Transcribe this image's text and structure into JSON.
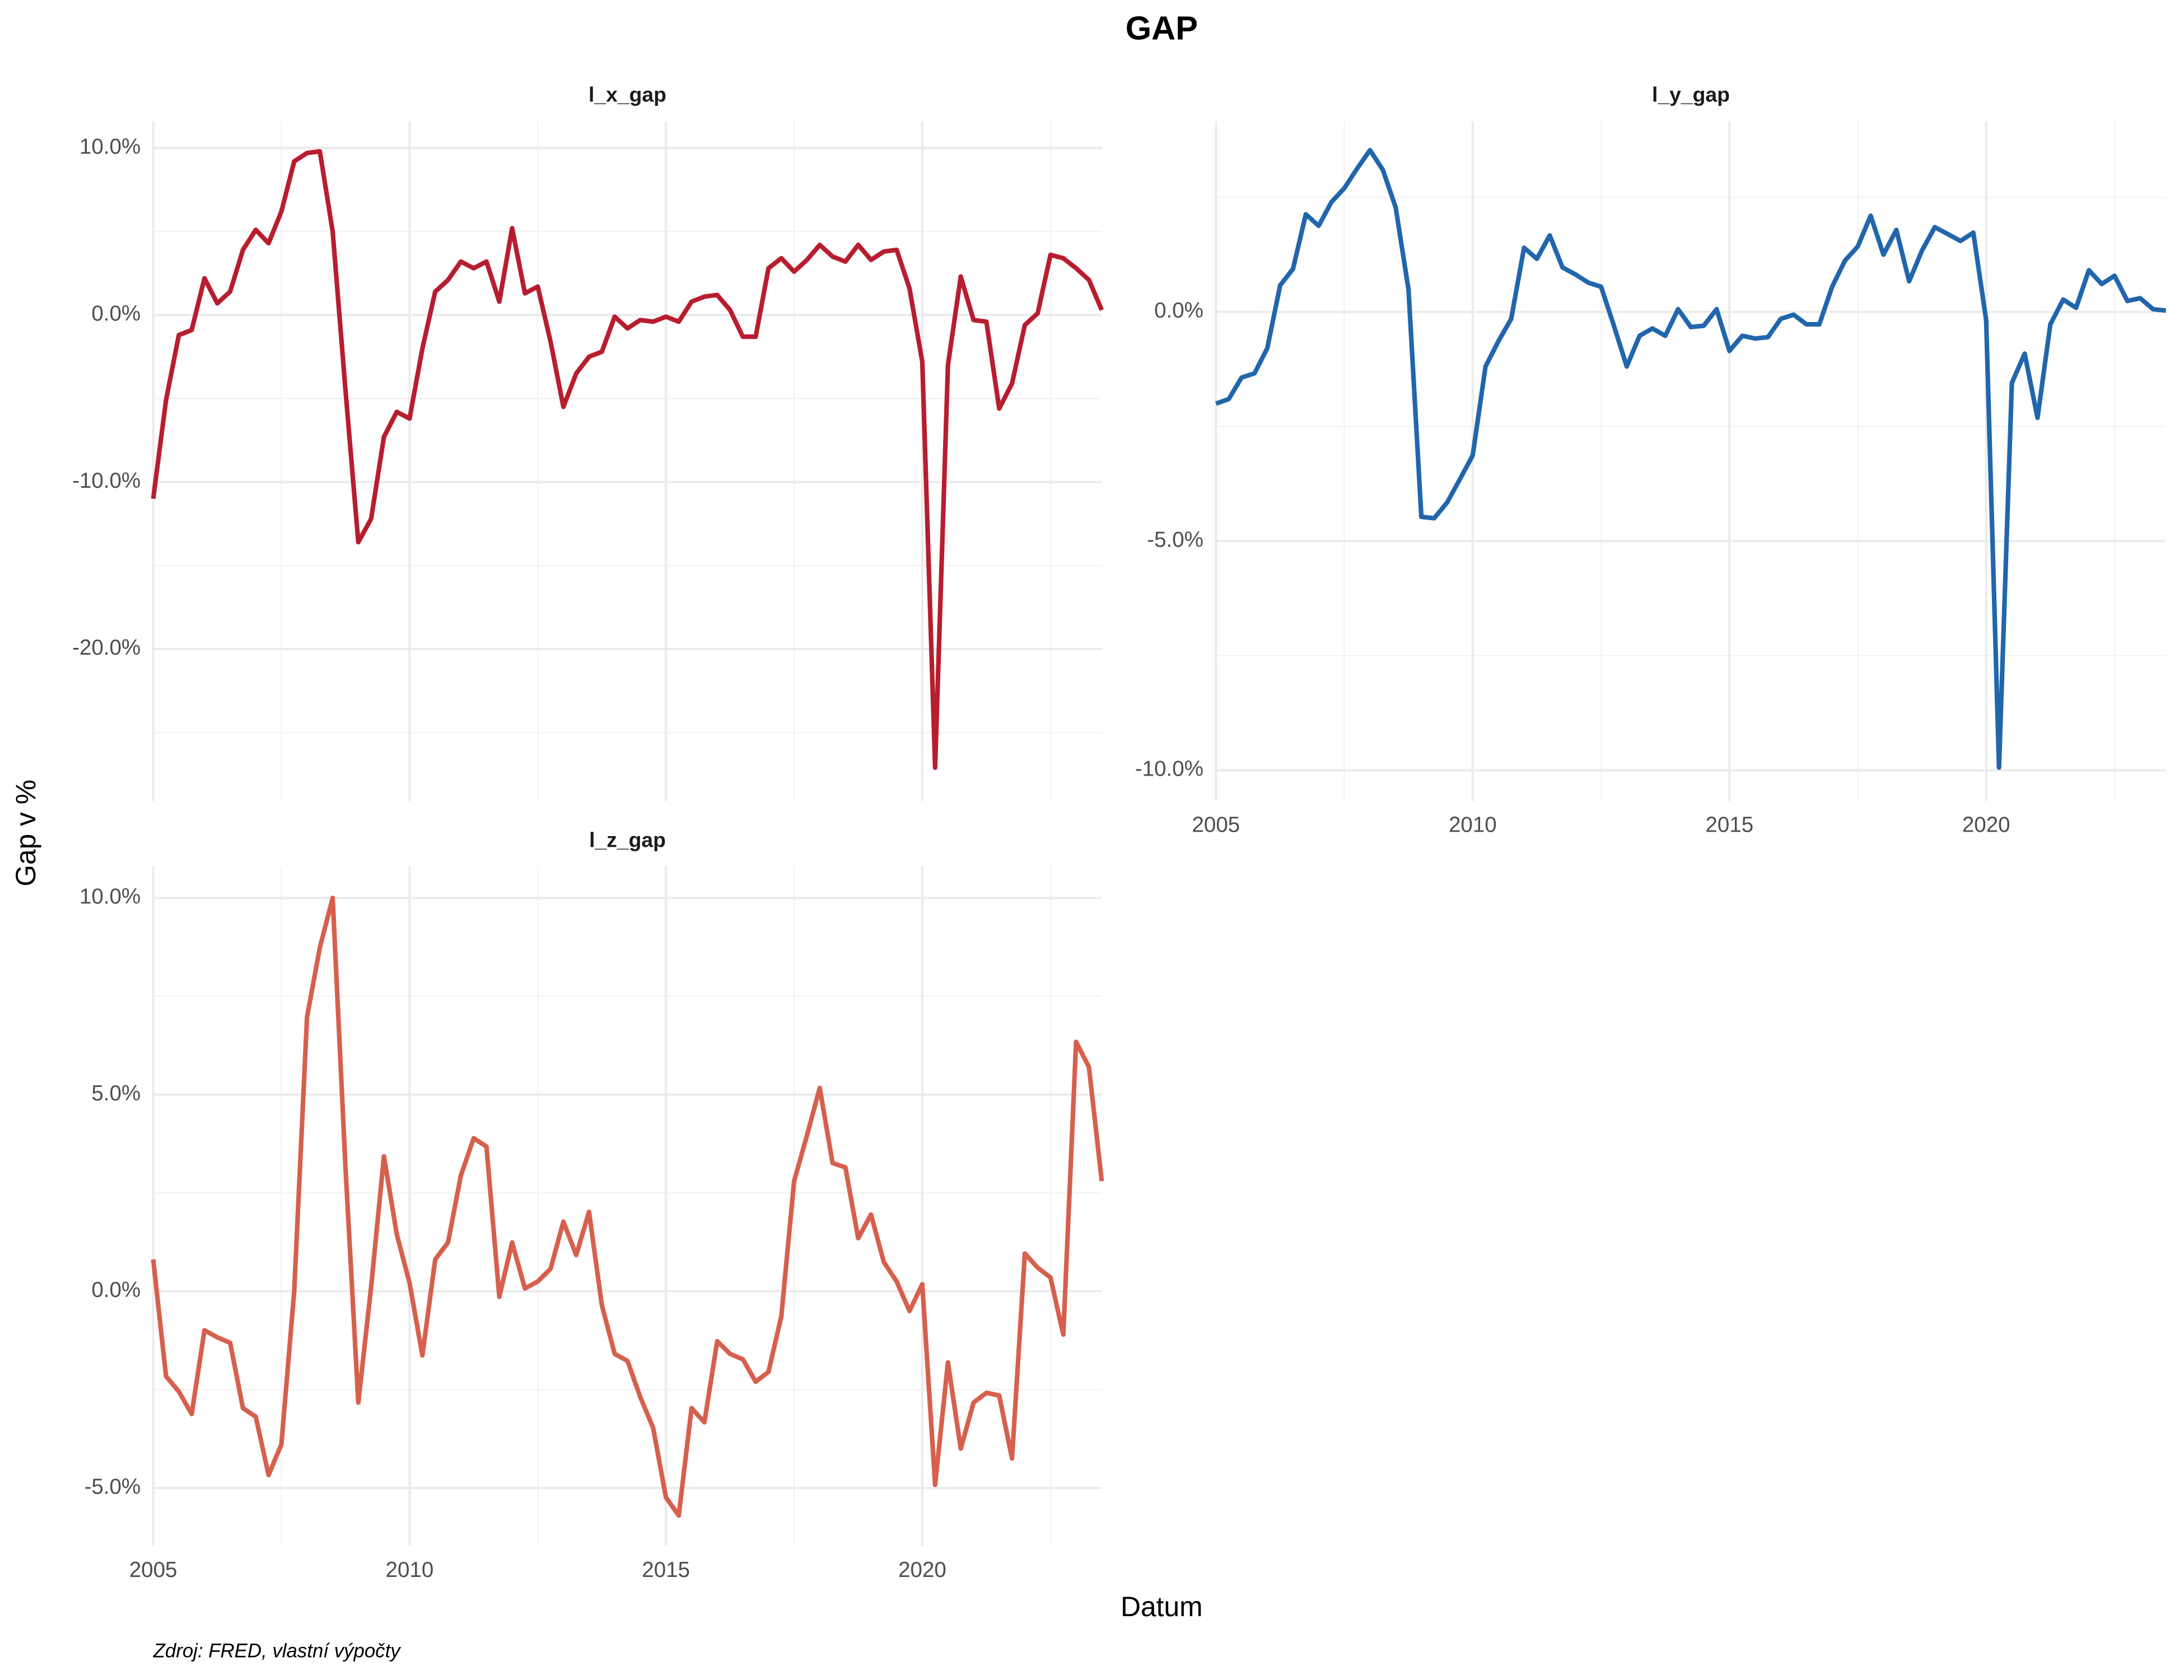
{
  "figure": {
    "title": "GAP",
    "x_label": "Datum",
    "y_label": "Gap v %",
    "caption": "Zdroj: FRED, vlastní výpočty"
  },
  "chart_data": [
    {
      "type": "line",
      "title": "l_x_gap",
      "grid": true,
      "x_tick_labels": false,
      "x": [
        2005,
        2005.25,
        2005.5,
        2005.75,
        2006,
        2006.25,
        2006.5,
        2006.75,
        2007,
        2007.25,
        2007.5,
        2007.75,
        2008,
        2008.25,
        2008.5,
        2008.75,
        2009,
        2009.25,
        2009.5,
        2009.75,
        2010,
        2010.25,
        2010.5,
        2010.75,
        2011,
        2011.25,
        2011.5,
        2011.75,
        2012,
        2012.25,
        2012.5,
        2012.75,
        2013,
        2013.25,
        2013.5,
        2013.75,
        2014,
        2014.25,
        2014.5,
        2014.75,
        2015,
        2015.25,
        2015.5,
        2015.75,
        2016,
        2016.25,
        2016.5,
        2016.75,
        2017,
        2017.25,
        2017.5,
        2017.75,
        2018,
        2018.25,
        2018.5,
        2018.75,
        2019,
        2019.25,
        2019.5,
        2019.75,
        2020,
        2020.25,
        2020.5,
        2020.75,
        2021,
        2021.25,
        2021.5,
        2021.75,
        2022,
        2022.25,
        2022.5,
        2022.75,
        2023,
        2023.25,
        2023.5
      ],
      "series": [
        {
          "color": "#b81d2e",
          "values": [
            -11,
            -5.1,
            -1.2,
            -0.9,
            2.2,
            0.7,
            1.4,
            3.9,
            5.1,
            4.3,
            6.2,
            9.2,
            9.7,
            9.8,
            5,
            -4.5,
            -13.6,
            -12.2,
            -7.3,
            -5.8,
            -6.2,
            -2,
            1.4,
            2.1,
            3.2,
            2.8,
            3.2,
            0.8,
            5.2,
            1.3,
            1.7,
            -1.6,
            -5.5,
            -3.5,
            -2.5,
            -2.2,
            -0.1,
            -0.8,
            -0.3,
            -0.4,
            -0.1,
            -0.4,
            0.8,
            1.1,
            1.2,
            0.3,
            -1.3,
            -1.3,
            2.8,
            3.4,
            2.6,
            3.3,
            4.2,
            3.5,
            3.2,
            4.2,
            3.3,
            3.8,
            3.9,
            1.6,
            -2.8,
            -27.1,
            -3,
            2.3,
            -0.3,
            -0.4,
            -5.6,
            -4.1,
            -0.6,
            0.1,
            3.6,
            3.4,
            2.8,
            2.1,
            0.3
          ]
        }
      ],
      "xlim": [
        2005,
        2023.5
      ],
      "xticks": [
        2005,
        2010,
        2015,
        2020
      ],
      "ylim": [
        -29.1,
        11.6
      ],
      "yticks": [
        {
          "value": -20,
          "label": "-20.0%"
        },
        {
          "value": -10,
          "label": "-10.0%"
        },
        {
          "value": 0,
          "label": "0.0%"
        },
        {
          "value": 10,
          "label": "10.0%"
        }
      ]
    },
    {
      "type": "line",
      "title": "l_y_gap",
      "grid": true,
      "x_tick_labels": true,
      "x": [
        2005,
        2005.25,
        2005.5,
        2005.75,
        2006,
        2006.25,
        2006.5,
        2006.75,
        2007,
        2007.25,
        2007.5,
        2007.75,
        2008,
        2008.25,
        2008.5,
        2008.75,
        2009,
        2009.25,
        2009.5,
        2009.75,
        2010,
        2010.25,
        2010.5,
        2010.75,
        2011,
        2011.25,
        2011.5,
        2011.75,
        2012,
        2012.25,
        2012.5,
        2012.75,
        2013,
        2013.25,
        2013.5,
        2013.75,
        2014,
        2014.25,
        2014.5,
        2014.75,
        2015,
        2015.25,
        2015.5,
        2015.75,
        2016,
        2016.25,
        2016.5,
        2016.75,
        2017,
        2017.25,
        2017.5,
        2017.75,
        2018,
        2018.25,
        2018.5,
        2018.75,
        2019,
        2019.25,
        2019.5,
        2019.75,
        2020,
        2020.25,
        2020.5,
        2020.75,
        2021,
        2021.25,
        2021.5,
        2021.75,
        2022,
        2022.25,
        2022.5,
        2022.75,
        2023,
        2023.25,
        2023.5
      ],
      "series": [
        {
          "color": "#2166ac",
          "values": [
            -2,
            -1.9,
            -1.43,
            -1.34,
            -0.79,
            0.58,
            0.94,
            2.13,
            1.88,
            2.4,
            2.7,
            3.13,
            3.53,
            3.1,
            2.28,
            0.49,
            -4.47,
            -4.5,
            -4.16,
            -3.65,
            -3.13,
            -1.19,
            -0.64,
            -0.15,
            1.4,
            1.16,
            1.67,
            0.97,
            0.82,
            0.64,
            0.55,
            -0.3,
            -1.19,
            -0.52,
            -0.36,
            -0.52,
            0.06,
            -0.33,
            -0.3,
            0.06,
            -0.85,
            -0.52,
            -0.58,
            -0.55,
            -0.15,
            -0.06,
            -0.27,
            -0.27,
            0.55,
            1.12,
            1.43,
            2.1,
            1.25,
            1.79,
            0.67,
            1.34,
            1.85,
            1.7,
            1.55,
            1.73,
            -0.18,
            -9.94,
            -1.55,
            -0.91,
            -2.31,
            -0.27,
            0.27,
            0.09,
            0.91,
            0.61,
            0.79,
            0.24,
            0.3,
            0.06,
            0.03
          ]
        }
      ],
      "xlim": [
        2005,
        2023.5
      ],
      "xticks": [
        2005,
        2010,
        2015,
        2020
      ],
      "ylim": [
        -10.67,
        4.16
      ],
      "yticks": [
        {
          "value": -10,
          "label": "-10.0%"
        },
        {
          "value": -5,
          "label": "-5.0%"
        },
        {
          "value": 0,
          "label": "0.0%"
        }
      ]
    },
    {
      "type": "line",
      "title": "l_z_gap",
      "grid": true,
      "x_tick_labels": true,
      "x": [
        2005,
        2005.25,
        2005.5,
        2005.75,
        2006,
        2006.25,
        2006.5,
        2006.75,
        2007,
        2007.25,
        2007.5,
        2007.75,
        2008,
        2008.25,
        2008.5,
        2008.75,
        2009,
        2009.25,
        2009.5,
        2009.75,
        2010,
        2010.25,
        2010.5,
        2010.75,
        2011,
        2011.25,
        2011.5,
        2011.75,
        2012,
        2012.25,
        2012.5,
        2012.75,
        2013,
        2013.25,
        2013.5,
        2013.75,
        2014,
        2014.25,
        2014.5,
        2014.75,
        2015,
        2015.25,
        2015.5,
        2015.75,
        2016,
        2016.25,
        2016.5,
        2016.75,
        2017,
        2017.25,
        2017.5,
        2017.75,
        2018,
        2018.25,
        2018.5,
        2018.75,
        2019,
        2019.25,
        2019.5,
        2019.75,
        2020,
        2020.25,
        2020.5,
        2020.75,
        2021,
        2021.25,
        2021.5,
        2021.75,
        2022,
        2022.25,
        2022.5,
        2022.75,
        2023,
        2023.25,
        2023.5
      ],
      "series": [
        {
          "color": "#d6604d",
          "values": [
            0.81,
            -2.16,
            -2.55,
            -3.12,
            -0.99,
            -1.17,
            -1.31,
            -2.97,
            -3.19,
            -4.67,
            -3.89,
            0,
            6.97,
            8.74,
            10,
            3.15,
            -2.83,
            0.11,
            3.43,
            1.45,
            0.21,
            -1.63,
            0.81,
            1.24,
            2.94,
            3.89,
            3.68,
            -0.14,
            1.24,
            0.07,
            0.25,
            0.57,
            1.77,
            0.92,
            2.02,
            -0.35,
            -1.59,
            -1.77,
            -2.69,
            -3.47,
            -5.24,
            -5.7,
            -2.97,
            -3.33,
            -1.27,
            -1.59,
            -1.73,
            -2.3,
            -2.05,
            -0.64,
            2.8,
            3.96,
            5.17,
            3.26,
            3.15,
            1.35,
            1.95,
            0.74,
            0.25,
            -0.5,
            0.18,
            -4.92,
            -1.81,
            -4,
            -2.83,
            -2.58,
            -2.65,
            -4.25,
            0.96,
            0.6,
            0.35,
            -1.1,
            6.34,
            5.7,
            2.8
          ]
        }
      ],
      "xlim": [
        2005,
        2023.5
      ],
      "xticks": [
        2005,
        2010,
        2015,
        2020
      ],
      "ylim": [
        -6.48,
        10.8
      ],
      "yticks": [
        {
          "value": -5,
          "label": "-5.0%"
        },
        {
          "value": 0,
          "label": "0.0%"
        },
        {
          "value": 5,
          "label": "5.0%"
        },
        {
          "value": 10,
          "label": "10.0%"
        }
      ]
    }
  ]
}
